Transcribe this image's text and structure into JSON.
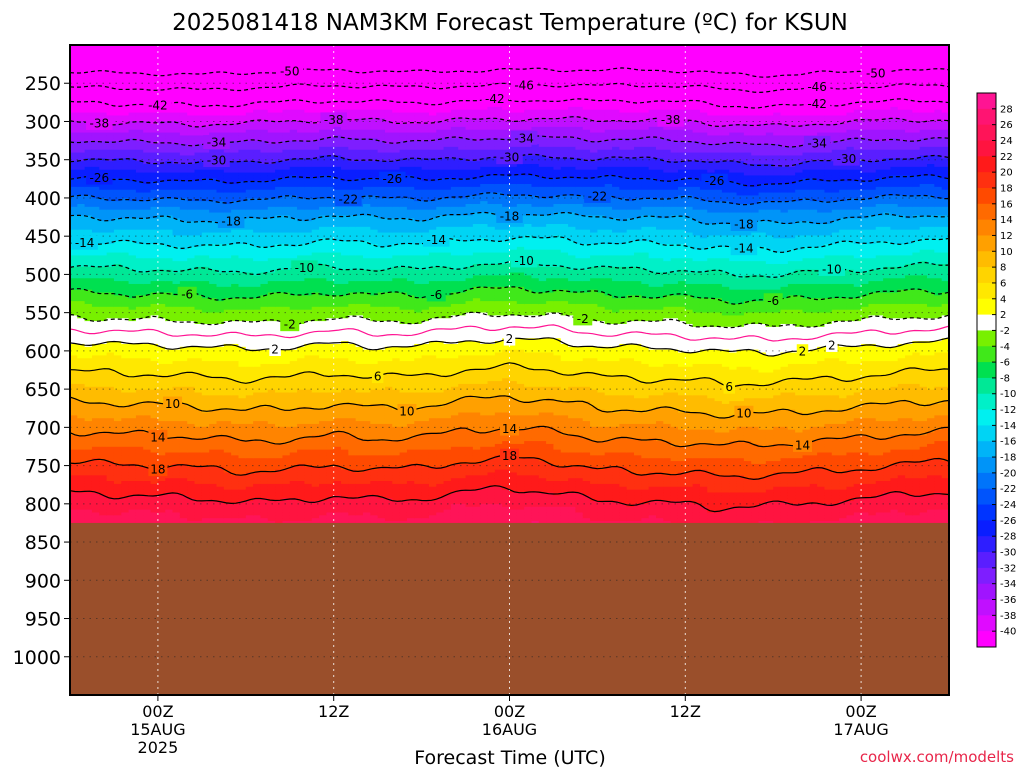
{
  "chart_data": {
    "type": "heatmap",
    "title": "2025081418 NAM3KM Forecast Temperature (ºC) for KSUN",
    "xlabel": "Forecast Time (UTC)",
    "ylabel": "",
    "credit": "coolwx.com/modelts",
    "y_axis": {
      "scale": "pressure (hPa), inverted",
      "range": [
        1050,
        200
      ],
      "ticks": [
        250,
        300,
        350,
        400,
        450,
        500,
        550,
        600,
        650,
        700,
        750,
        800,
        850,
        900,
        950,
        1000
      ]
    },
    "x_axis": {
      "unit": "forecast hour from 2025-08-14 18Z",
      "range": [
        0,
        60
      ],
      "ticks": [
        {
          "hour": 6,
          "lines": [
            "00Z",
            "15AUG",
            "2025"
          ]
        },
        {
          "hour": 18,
          "lines": [
            "12Z"
          ]
        },
        {
          "hour": 30,
          "lines": [
            "00Z",
            "16AUG"
          ]
        },
        {
          "hour": 42,
          "lines": [
            "12Z"
          ]
        },
        {
          "hour": 54,
          "lines": [
            "00Z",
            "17AUG"
          ]
        }
      ]
    },
    "surface_pressure_hpa": 825,
    "grid": true,
    "legend": {
      "position": "right",
      "unit": "°C",
      "labels": [
        28,
        26,
        24,
        22,
        20,
        18,
        16,
        14,
        12,
        10,
        8,
        6,
        4,
        2,
        -2,
        -4,
        -6,
        -8,
        -10,
        -12,
        -14,
        -16,
        -18,
        -20,
        -22,
        -24,
        -26,
        -28,
        -30,
        -32,
        -34,
        -36,
        -38,
        -40
      ],
      "bins": [
        {
          "min": 28,
          "max": 30,
          "color": "#ff1493"
        },
        {
          "min": 26,
          "max": 28,
          "color": "#ff1472"
        },
        {
          "min": 24,
          "max": 26,
          "color": "#ff1458"
        },
        {
          "min": 22,
          "max": 24,
          "color": "#ff1440"
        },
        {
          "min": 20,
          "max": 22,
          "color": "#ff1a1a"
        },
        {
          "min": 18,
          "max": 20,
          "color": "#ff3010"
        },
        {
          "min": 16,
          "max": 18,
          "color": "#ff4a00"
        },
        {
          "min": 14,
          "max": 16,
          "color": "#ff6a00"
        },
        {
          "min": 12,
          "max": 14,
          "color": "#ff8400"
        },
        {
          "min": 10,
          "max": 12,
          "color": "#ffa000"
        },
        {
          "min": 8,
          "max": 10,
          "color": "#ffbc00"
        },
        {
          "min": 6,
          "max": 8,
          "color": "#ffd400"
        },
        {
          "min": 4,
          "max": 6,
          "color": "#ffe800"
        },
        {
          "min": 2,
          "max": 4,
          "color": "#ffff00"
        },
        {
          "min": -2,
          "max": 2,
          "color": "#ffffff"
        },
        {
          "min": -4,
          "max": -2,
          "color": "#78f000"
        },
        {
          "min": -6,
          "max": -4,
          "color": "#40e81a"
        },
        {
          "min": -8,
          "max": -6,
          "color": "#00e050"
        },
        {
          "min": -10,
          "max": -8,
          "color": "#00e896"
        },
        {
          "min": -12,
          "max": -10,
          "color": "#00f0c8"
        },
        {
          "min": -14,
          "max": -12,
          "color": "#00f0f0"
        },
        {
          "min": -16,
          "max": -14,
          "color": "#00d4f4"
        },
        {
          "min": -18,
          "max": -16,
          "color": "#00b4f8"
        },
        {
          "min": -20,
          "max": -18,
          "color": "#0094f8"
        },
        {
          "min": -22,
          "max": -20,
          "color": "#0074fa"
        },
        {
          "min": -24,
          "max": -22,
          "color": "#0054fc"
        },
        {
          "min": -26,
          "max": -24,
          "color": "#0034ff"
        },
        {
          "min": -28,
          "max": -26,
          "color": "#0a1eff"
        },
        {
          "min": -30,
          "max": -28,
          "color": "#2e1eff"
        },
        {
          "min": -32,
          "max": -30,
          "color": "#5a1eff"
        },
        {
          "min": -34,
          "max": -32,
          "color": "#7e1eff"
        },
        {
          "min": -36,
          "max": -34,
          "color": "#a014ff"
        },
        {
          "min": -38,
          "max": -36,
          "color": "#c010ff"
        },
        {
          "min": -40,
          "max": -38,
          "color": "#e00aff"
        },
        {
          "min": -99,
          "max": -40,
          "color": "#ff00ff"
        }
      ]
    },
    "profile_hpa": [
      200,
      230,
      250,
      275,
      300,
      325,
      350,
      375,
      400,
      425,
      450,
      475,
      500,
      525,
      550,
      575,
      600,
      625,
      650,
      675,
      700,
      725,
      750,
      775,
      800,
      825
    ],
    "profile_temp_c": [
      -55,
      -51,
      -47,
      -42,
      -38,
      -34,
      -30,
      -26,
      -22,
      -18,
      -15,
      -12,
      -9,
      -6,
      -3,
      0,
      3,
      5.5,
      8,
      10.5,
      13,
      15.5,
      18,
      20.5,
      23,
      25
    ],
    "time_variation": {
      "hours": [
        0,
        3,
        6,
        9,
        12,
        15,
        18,
        21,
        24,
        27,
        30,
        33,
        36,
        39,
        42,
        45,
        48,
        51,
        54,
        57,
        60
      ],
      "upper_shift_c": [
        0,
        -0.3,
        -0.5,
        -0.7,
        -0.3,
        0.2,
        0.4,
        0.2,
        -0.1,
        0.3,
        0.5,
        0.6,
        0.4,
        0.5,
        0.2,
        -0.6,
        -1.0,
        -0.4,
        0.1,
        0.4,
        0.3
      ],
      "lower_shift_c": [
        0.5,
        0.2,
        0.0,
        -0.3,
        -0.8,
        -0.6,
        0.0,
        -0.5,
        -0.3,
        0.6,
        1.0,
        0.5,
        -0.5,
        -0.8,
        -1.0,
        -1.4,
        -1.2,
        -0.8,
        -0.4,
        0.2,
        0.6
      ]
    },
    "contours": {
      "solid_above_zero": [
        2,
        6,
        10,
        14,
        18,
        22
      ],
      "dashed_below_zero": [
        -2,
        -6,
        -10,
        -14,
        -18,
        -22,
        -26,
        -30,
        -34,
        -38,
        -42,
        -46,
        -50
      ],
      "zero_line_color": "#ff1493",
      "labels": [
        {
          "value": -50,
          "text": "-50",
          "hours": [
            15,
            55
          ]
        },
        {
          "value": -46,
          "text": "-46",
          "hours": [
            31,
            51
          ]
        },
        {
          "value": -42,
          "text": "-42",
          "hours": [
            6,
            29,
            51
          ]
        },
        {
          "value": -38,
          "text": "-38",
          "hours": [
            2,
            18,
            41
          ]
        },
        {
          "value": -34,
          "text": "-34",
          "hours": [
            10,
            31,
            51
          ]
        },
        {
          "value": -30,
          "text": "-30",
          "hours": [
            10,
            30,
            53
          ]
        },
        {
          "value": -26,
          "text": "-26",
          "hours": [
            2,
            22,
            44
          ]
        },
        {
          "value": -22,
          "text": "-22",
          "hours": [
            19,
            36
          ]
        },
        {
          "value": -18,
          "text": "-18",
          "hours": [
            11,
            30,
            46
          ]
        },
        {
          "value": -14,
          "text": "-14",
          "hours": [
            1,
            25,
            46
          ]
        },
        {
          "value": -10,
          "text": "-10",
          "hours": [
            16,
            31,
            52
          ]
        },
        {
          "value": -6,
          "text": "-6",
          "hours": [
            8,
            25,
            48
          ]
        },
        {
          "value": -2,
          "text": "-2",
          "hours": [
            15,
            35
          ]
        },
        {
          "value": 2,
          "text": "2",
          "hours": [
            14,
            30,
            50,
            52
          ]
        },
        {
          "value": 6,
          "text": "6",
          "hours": [
            21,
            45
          ]
        },
        {
          "value": 10,
          "text": "10",
          "hours": [
            7,
            23,
            46
          ]
        },
        {
          "value": 14,
          "text": "14",
          "hours": [
            6,
            30,
            50
          ]
        },
        {
          "value": 18,
          "text": "18",
          "hours": [
            6,
            30
          ]
        }
      ]
    },
    "colors": {
      "below_ground": "#9a4f2b",
      "credit": "#e8264a",
      "frame": "#000000",
      "grid": "#888888"
    }
  }
}
